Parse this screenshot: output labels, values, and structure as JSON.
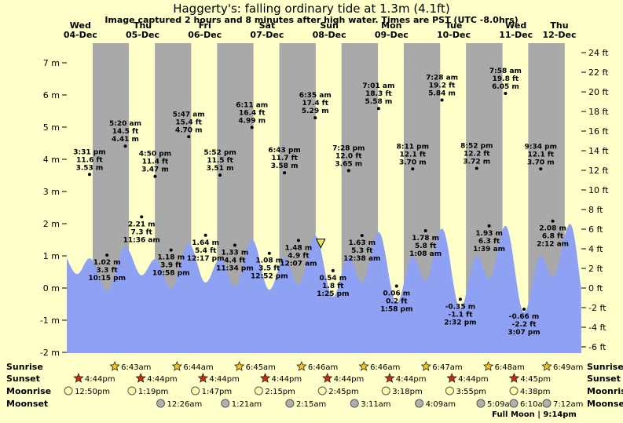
{
  "title": "Haggerty's: falling ordinary tide at 1.3m (4.1ft)",
  "subtitle": "Image captured 2 hours and 8 minutes after high water. Times are PST (UTC -8.0hrs)",
  "colors": {
    "background": "#ffffca",
    "night_band": "#a9a9a9",
    "tide_fill": "#8fa1f2",
    "day_label": "#dd0000",
    "current_marker": "#efe43c",
    "sunrise_star": "#f5c71a",
    "sunset_star": "#cc2a14",
    "moonrise_circle": "#ffffb0",
    "moonset_circle": "#b0b0b0"
  },
  "chart_data": {
    "type": "area",
    "title": "Haggerty's: falling ordinary tide at 1.3m (4.1ft)",
    "subtitle": "Image captured 2 hours and 8 minutes after high water. Times are PST (UTC -8.0hrs)",
    "y_axis_left": {
      "unit": "m",
      "min": -2,
      "max": 7,
      "ticks": [
        7,
        6,
        5,
        4,
        3,
        2,
        1,
        0,
        -1,
        -2
      ]
    },
    "y_axis_right": {
      "unit": "ft",
      "min": -6,
      "max": 24,
      "ticks": [
        24,
        22,
        20,
        18,
        16,
        14,
        12,
        10,
        8,
        6,
        4,
        2,
        0,
        -2,
        -4,
        -6
      ]
    },
    "days": [
      {
        "name": "Wed",
        "date": "04-Dec"
      },
      {
        "name": "Thu",
        "date": "05-Dec"
      },
      {
        "name": "Fri",
        "date": "06-Dec"
      },
      {
        "name": "Sat",
        "date": "07-Dec"
      },
      {
        "name": "Sun",
        "date": "08-Dec"
      },
      {
        "name": "Mon",
        "date": "09-Dec"
      },
      {
        "name": "Tue",
        "date": "10-Dec"
      },
      {
        "name": "Wed",
        "date": "11-Dec"
      },
      {
        "name": "Thu",
        "date": "12-Dec"
      }
    ],
    "tide_events": [
      {
        "type": "high",
        "t": 15.52,
        "height_m": 3.53,
        "height_ft": 11.6,
        "lines": [
          "3:31 pm",
          "11.6 ft",
          "3.53 m"
        ]
      },
      {
        "type": "low",
        "t": 22.25,
        "height_m": 1.02,
        "height_ft": 3.3,
        "lines": [
          "1.02 m",
          "3.3 ft",
          "10:15 pm"
        ]
      },
      {
        "type": "high",
        "t": 29.33,
        "height_m": 4.41,
        "height_ft": 14.5,
        "lines": [
          "5:20 am",
          "14.5 ft",
          "4.41 m"
        ]
      },
      {
        "type": "low",
        "t": 35.6,
        "height_m": 2.21,
        "height_ft": 7.3,
        "lines": [
          "2.21 m",
          "7.3 ft",
          "11:36 am"
        ]
      },
      {
        "type": "high",
        "t": 40.83,
        "height_m": 3.47,
        "height_ft": 11.4,
        "lines": [
          "4:50 pm",
          "11.4 ft",
          "3.47 m"
        ]
      },
      {
        "type": "low",
        "t": 46.97,
        "height_m": 1.18,
        "height_ft": 3.9,
        "lines": [
          "1.18 m",
          "3.9 ft",
          "10:58 pm"
        ]
      },
      {
        "type": "high",
        "t": 53.78,
        "height_m": 4.7,
        "height_ft": 15.4,
        "lines": [
          "5:47 am",
          "15.4 ft",
          "4.70 m"
        ]
      },
      {
        "type": "low",
        "t": 60.28,
        "height_m": 1.64,
        "height_ft": 5.4,
        "lines": [
          "1.64 m",
          "5.4 ft",
          "12:17 pm"
        ]
      },
      {
        "type": "high",
        "t": 65.87,
        "height_m": 3.51,
        "height_ft": 11.5,
        "lines": [
          "5:52 pm",
          "11.5 ft",
          "3.51 m"
        ]
      },
      {
        "type": "low",
        "t": 71.57,
        "height_m": 1.33,
        "height_ft": 4.4,
        "lines": [
          "1.33 m",
          "4.4 ft",
          "11:34 pm"
        ]
      },
      {
        "type": "high",
        "t": 78.18,
        "height_m": 4.99,
        "height_ft": 16.4,
        "lines": [
          "6:11 am",
          "16.4 ft",
          "4.99 m"
        ]
      },
      {
        "type": "low",
        "t": 84.87,
        "height_m": 1.08,
        "height_ft": 3.5,
        "lines": [
          "1.08 m",
          "3.5 ft",
          "12:52 pm"
        ]
      },
      {
        "type": "high",
        "t": 90.72,
        "height_m": 3.58,
        "height_ft": 11.7,
        "lines": [
          "6:43 pm",
          "11.7 ft",
          "3.58 m"
        ]
      },
      {
        "type": "low",
        "t": 96.12,
        "height_m": 1.48,
        "height_ft": 4.9,
        "lines": [
          "1.48 m",
          "4.9 ft",
          "12:07 am"
        ]
      },
      {
        "type": "high",
        "t": 102.58,
        "height_m": 5.29,
        "height_ft": 17.4,
        "lines": [
          "6:35 am",
          "17.4 ft",
          "5.29 m"
        ]
      },
      {
        "type": "low",
        "t": 109.42,
        "height_m": 0.54,
        "height_ft": 1.8,
        "lines": [
          "0.54 m",
          "1.8 ft",
          "1:25 pm"
        ]
      },
      {
        "type": "high",
        "t": 115.47,
        "height_m": 3.65,
        "height_ft": 12.0,
        "lines": [
          "7:28 pm",
          "12.0 ft",
          "3.65 m"
        ]
      },
      {
        "type": "low",
        "t": 120.63,
        "height_m": 1.63,
        "height_ft": 5.3,
        "lines": [
          "1.63 m",
          "5.3 ft",
          "12:38 am"
        ]
      },
      {
        "type": "high",
        "t": 127.02,
        "height_m": 5.58,
        "height_ft": 18.3,
        "lines": [
          "7:01 am",
          "18.3 ft",
          "5.58 m"
        ]
      },
      {
        "type": "low",
        "t": 133.97,
        "height_m": 0.06,
        "height_ft": 0.2,
        "lines": [
          "0.06 m",
          "0.2 ft",
          "1:58 pm"
        ]
      },
      {
        "type": "high",
        "t": 140.18,
        "height_m": 3.7,
        "height_ft": 12.1,
        "lines": [
          "8:11 pm",
          "12.1 ft",
          "3.70 m"
        ]
      },
      {
        "type": "low",
        "t": 145.13,
        "height_m": 1.78,
        "height_ft": 5.8,
        "lines": [
          "1.78 m",
          "5.8 ft",
          "1:08 am"
        ]
      },
      {
        "type": "high",
        "t": 151.47,
        "height_m": 5.84,
        "height_ft": 19.2,
        "lines": [
          "7:28 am",
          "19.2 ft",
          "5.84 m"
        ]
      },
      {
        "type": "low",
        "t": 158.53,
        "height_m": -0.35,
        "height_ft": -1.1,
        "lines": [
          "-0.35 m",
          "-1.1 ft",
          "2:32 pm"
        ]
      },
      {
        "type": "high",
        "t": 164.87,
        "height_m": 3.72,
        "height_ft": 12.2,
        "lines": [
          "8:52 pm",
          "12.2 ft",
          "3.72 m"
        ]
      },
      {
        "type": "low",
        "t": 169.65,
        "height_m": 1.93,
        "height_ft": 6.3,
        "lines": [
          "1.93 m",
          "6.3 ft",
          "1:39 am"
        ]
      },
      {
        "type": "high",
        "t": 175.97,
        "height_m": 6.05,
        "height_ft": 19.8,
        "lines": [
          "7:58 am",
          "19.8 ft",
          "6.05 m"
        ]
      },
      {
        "type": "low",
        "t": 183.12,
        "height_m": -0.66,
        "height_ft": -2.2,
        "lines": [
          "-0.66 m",
          "-2.2 ft",
          "3:07 pm"
        ]
      },
      {
        "type": "high",
        "t": 189.57,
        "height_m": 3.7,
        "height_ft": 12.1,
        "lines": [
          "9:34 pm",
          "12.1 ft",
          "3.70 m"
        ]
      },
      {
        "type": "low",
        "t": 194.2,
        "height_m": 2.08,
        "height_ft": 6.8,
        "lines": [
          "2.08 m",
          "6.8 ft",
          "2:12 am"
        ]
      }
    ],
    "curve_padding_before": [
      {
        "t": 4.3,
        "h": 4.1
      },
      {
        "t": 10.75,
        "h": 2.3
      }
    ],
    "curve_padding_after": [
      {
        "t": 200.9,
        "h": 6.2
      },
      {
        "t": 207.5,
        "h": -0.8
      }
    ],
    "current_marker": {
      "description": "current tide level",
      "height_label": "1.3m (4.1ft)",
      "t": 104.72
    }
  },
  "astro": {
    "rows": [
      {
        "id": "sunrise",
        "label": "Sunrise",
        "icon": "sunrise-star",
        "entries": [
          {
            "time": "6:43am",
            "t": 30.72
          },
          {
            "time": "6:44am",
            "t": 54.73
          },
          {
            "time": "6:45am",
            "t": 78.75
          },
          {
            "time": "6:46am",
            "t": 102.77
          },
          {
            "time": "6:46am",
            "t": 126.77
          },
          {
            "time": "6:47am",
            "t": 150.78
          },
          {
            "time": "6:48am",
            "t": 174.8
          },
          {
            "time": "6:49am",
            "t": 198.82
          }
        ]
      },
      {
        "id": "sunset",
        "label": "Sunset",
        "icon": "sunset-star",
        "entries": [
          {
            "time": "4:44pm",
            "t": 16.73
          },
          {
            "time": "4:44pm",
            "t": 40.73
          },
          {
            "time": "4:44pm",
            "t": 64.73
          },
          {
            "time": "4:44pm",
            "t": 88.73
          },
          {
            "time": "4:44pm",
            "t": 112.73
          },
          {
            "time": "4:44pm",
            "t": 136.73
          },
          {
            "time": "4:44pm",
            "t": 160.73
          },
          {
            "time": "4:45pm",
            "t": 184.75
          }
        ]
      },
      {
        "id": "moonrise",
        "label": "Moonrise",
        "icon": "moon-circle-light",
        "entries": [
          {
            "time": "12:50pm",
            "t": 12.83
          },
          {
            "time": "1:19pm",
            "t": 37.32
          },
          {
            "time": "1:47pm",
            "t": 61.78
          },
          {
            "time": "2:15pm",
            "t": 86.25
          },
          {
            "time": "2:45pm",
            "t": 110.75
          },
          {
            "time": "3:18pm",
            "t": 135.3
          },
          {
            "time": "3:55pm",
            "t": 159.92
          },
          {
            "time": "4:38pm",
            "t": 184.63
          }
        ]
      },
      {
        "id": "moonset",
        "label": "Moonset",
        "icon": "moon-circle-dark",
        "entries": [
          {
            "time": "12:26am",
            "t": 48.43
          },
          {
            "time": "1:21am",
            "t": 73.35
          },
          {
            "time": "2:15am",
            "t": 98.25
          },
          {
            "time": "3:11am",
            "t": 123.18
          },
          {
            "time": "4:09am",
            "t": 148.15
          },
          {
            "time": "5:09am",
            "t": 173.15
          },
          {
            "time": "6:10am",
            "t": 198.17
          },
          {
            "time": "7:12am",
            "t": 223.2
          }
        ]
      }
    ],
    "moon_note": "Full Moon | 9:14pm",
    "moon_note_t": 189.23
  }
}
